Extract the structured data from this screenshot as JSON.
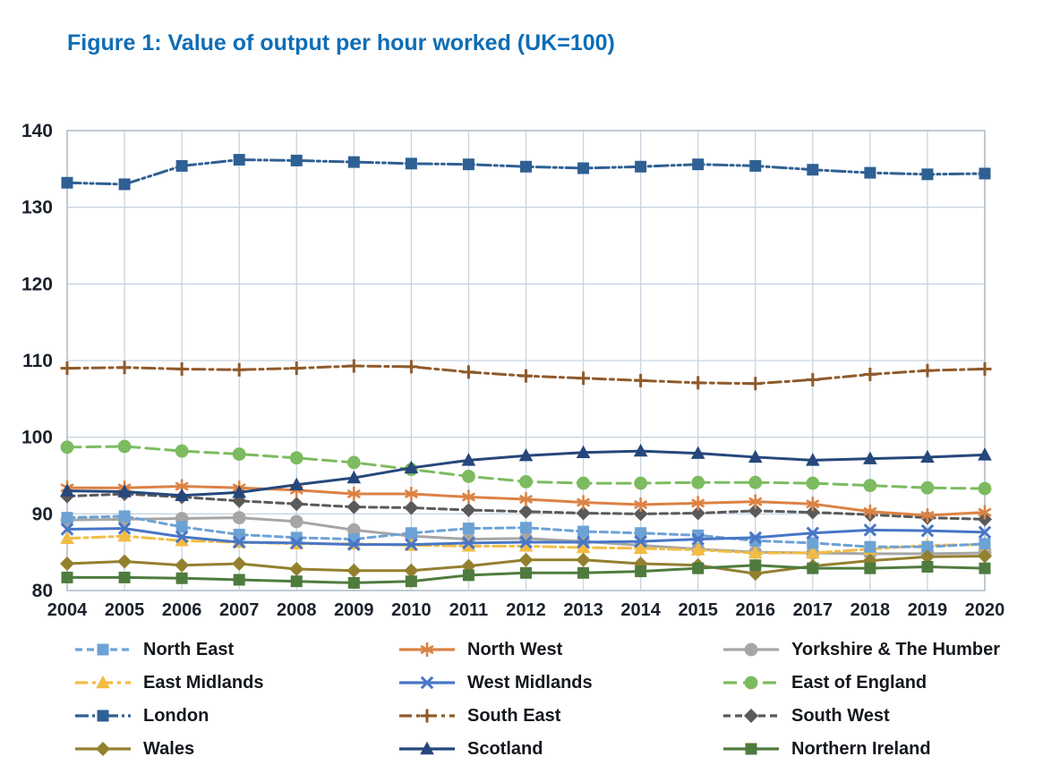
{
  "colors": {
    "title": "#0f6db5",
    "grid": "#c8d4e0",
    "plot_border": "#b4bfca",
    "axis_text": "#1b222c",
    "legend_text": "#14181d",
    "background": "#ffffff"
  },
  "chart_data": {
    "type": "line",
    "title": "Figure 1: Value of output per hour worked (UK=100)",
    "xlabel": "",
    "ylabel": "",
    "x": [
      2004,
      2005,
      2006,
      2007,
      2008,
      2009,
      2010,
      2011,
      2012,
      2013,
      2014,
      2015,
      2016,
      2017,
      2018,
      2019,
      2020
    ],
    "ylim": [
      80,
      140
    ],
    "y_ticks": [
      80,
      90,
      100,
      110,
      120,
      130,
      140
    ],
    "grid": true,
    "legend_position": "bottom",
    "legend_columns": 3,
    "series": [
      {
        "name": "North East",
        "color": "#6da2d5",
        "dash_style": "dashed",
        "marker": "square",
        "values": [
          89.5,
          89.7,
          88.3,
          87.3,
          86.9,
          86.7,
          87.5,
          88.1,
          88.2,
          87.7,
          87.5,
          87.2,
          86.5,
          86.2,
          85.7,
          85.7,
          86.1
        ]
      },
      {
        "name": "North West",
        "color": "#dc8244",
        "dash_style": "solid",
        "marker": "asterisk",
        "values": [
          93.4,
          93.4,
          93.6,
          93.4,
          93.1,
          92.6,
          92.6,
          92.2,
          91.9,
          91.5,
          91.2,
          91.4,
          91.6,
          91.3,
          90.3,
          89.8,
          90.2
        ]
      },
      {
        "name": "Yorkshire & The Humber",
        "color": "#a6a6a6",
        "dash_style": "solid",
        "marker": "circle",
        "values": [
          89.2,
          89.3,
          89.4,
          89.5,
          89.0,
          87.9,
          87.1,
          86.7,
          86.8,
          86.4,
          85.9,
          85.4,
          85.0,
          84.9,
          84.8,
          84.8,
          84.9
        ]
      },
      {
        "name": "East Midlands",
        "color": "#f2bc44",
        "dash_style": "dash-dot",
        "marker": "triangle",
        "values": [
          86.8,
          87.1,
          86.5,
          86.3,
          86.1,
          86.1,
          85.9,
          85.8,
          85.8,
          85.6,
          85.5,
          85.3,
          84.9,
          84.9,
          85.4,
          85.9,
          86.0
        ]
      },
      {
        "name": "West Midlands",
        "color": "#4876c6",
        "dash_style": "solid",
        "marker": "x",
        "values": [
          88.0,
          88.1,
          87.0,
          86.3,
          86.2,
          86.0,
          86.0,
          86.2,
          86.3,
          86.3,
          86.4,
          86.7,
          86.9,
          87.5,
          87.9,
          87.8,
          87.6
        ]
      },
      {
        "name": "East of England",
        "color": "#7cbb5f",
        "dash_style": "long-dash",
        "marker": "circle",
        "values": [
          98.7,
          98.8,
          98.2,
          97.8,
          97.3,
          96.7,
          95.8,
          94.9,
          94.2,
          94.0,
          94.0,
          94.1,
          94.1,
          94.0,
          93.7,
          93.4,
          93.3
        ]
      },
      {
        "name": "London",
        "color": "#2f6093",
        "dash_style": "dash-dot-dot",
        "marker": "square",
        "values": [
          133.2,
          133.0,
          135.4,
          136.2,
          136.1,
          135.9,
          135.7,
          135.6,
          135.3,
          135.1,
          135.3,
          135.6,
          135.4,
          134.9,
          134.5,
          134.3,
          134.4
        ]
      },
      {
        "name": "South East",
        "color": "#8f5a2b",
        "dash_style": "dash-dot",
        "marker": "plus",
        "values": [
          109.0,
          109.1,
          108.9,
          108.8,
          109.0,
          109.3,
          109.2,
          108.5,
          108.0,
          107.7,
          107.4,
          107.1,
          107.0,
          107.5,
          108.2,
          108.7,
          108.9
        ]
      },
      {
        "name": "South West",
        "color": "#5a5a5a",
        "dash_style": "dashed",
        "marker": "diamond",
        "values": [
          92.3,
          92.6,
          92.2,
          91.7,
          91.3,
          90.9,
          90.8,
          90.5,
          90.3,
          90.1,
          90.0,
          90.1,
          90.4,
          90.2,
          89.9,
          89.5,
          89.3
        ]
      },
      {
        "name": "Wales",
        "color": "#93802f",
        "dash_style": "solid",
        "marker": "diamond",
        "values": [
          83.5,
          83.8,
          83.3,
          83.5,
          82.8,
          82.6,
          82.6,
          83.2,
          84.0,
          84.0,
          83.5,
          83.3,
          82.2,
          83.2,
          83.9,
          84.4,
          84.5
        ]
      },
      {
        "name": "Scotland",
        "color": "#25477b",
        "dash_style": "solid",
        "marker": "triangle",
        "values": [
          93.0,
          92.9,
          92.4,
          92.8,
          93.8,
          94.7,
          96.0,
          97.0,
          97.6,
          98.0,
          98.2,
          97.9,
          97.4,
          97.0,
          97.2,
          97.4,
          97.7
        ]
      },
      {
        "name": "Northern Ireland",
        "color": "#4f7b3f",
        "dash_style": "solid",
        "marker": "square",
        "values": [
          81.7,
          81.7,
          81.6,
          81.4,
          81.2,
          81.0,
          81.2,
          82.0,
          82.3,
          82.3,
          82.5,
          82.9,
          83.3,
          82.9,
          82.9,
          83.1,
          82.9
        ]
      }
    ]
  }
}
